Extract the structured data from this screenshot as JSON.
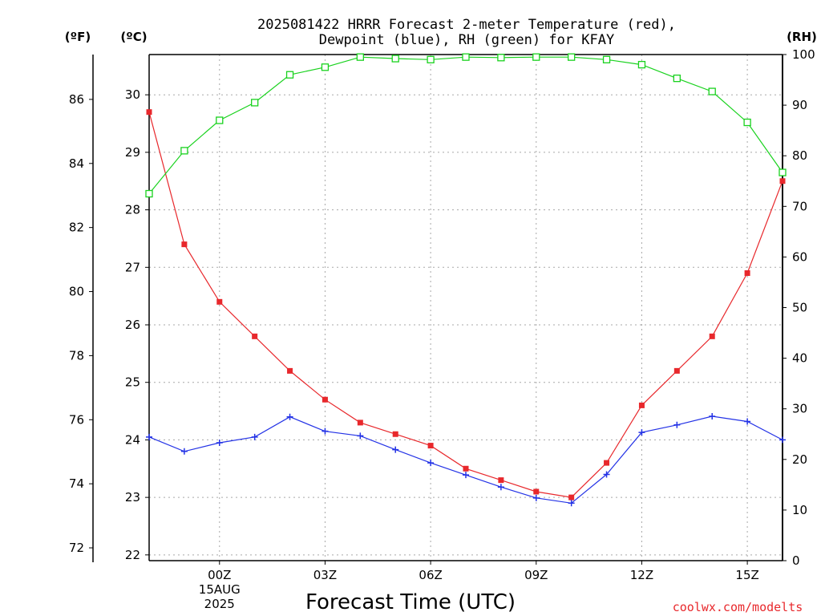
{
  "chart_data": {
    "type": "line",
    "title_lines": [
      "2025081422 HRRR Forecast 2-meter Temperature (red),",
      "Dewpoint (blue), RH (green) for KFAY"
    ],
    "xlabel": "Forecast Time (UTC)",
    "credit": "coolwx.com/modelts",
    "axes": {
      "left_f": {
        "label": "(ºF)",
        "ticks": [
          "72",
          "74",
          "76",
          "78",
          "80",
          "82",
          "84",
          "86"
        ],
        "range": [
          71.6,
          87.4
        ]
      },
      "left_c": {
        "label": "(ºC)",
        "ticks": [
          "22",
          "23",
          "24",
          "25",
          "26",
          "27",
          "28",
          "29",
          "30"
        ],
        "range": [
          21.9,
          30.7
        ]
      },
      "right_rh": {
        "label": "(RH)",
        "ticks": [
          "0",
          "10",
          "20",
          "30",
          "40",
          "50",
          "60",
          "70",
          "80",
          "90",
          "100"
        ],
        "range": [
          0,
          100
        ]
      }
    },
    "x_ticks": [
      {
        "hour": 2,
        "lines": [
          "00Z",
          "15AUG",
          "2025"
        ]
      },
      {
        "hour": 5,
        "lines": [
          "03Z"
        ]
      },
      {
        "hour": 8,
        "lines": [
          "06Z"
        ]
      },
      {
        "hour": 11,
        "lines": [
          "09Z"
        ]
      },
      {
        "hour": 14,
        "lines": [
          "12Z"
        ]
      },
      {
        "hour": 17,
        "lines": [
          "15Z"
        ]
      }
    ],
    "x_range": [
      0,
      18
    ],
    "grid": true,
    "series": [
      {
        "key": "temperature",
        "color": "#e8282c",
        "marker": "filled-square",
        "axis": "left_c",
        "x": [
          0,
          1,
          2,
          3,
          4,
          5,
          6,
          7,
          8,
          9,
          10,
          11,
          12,
          13,
          14,
          15,
          16,
          17,
          18
        ],
        "values": [
          29.7,
          27.4,
          26.4,
          25.8,
          25.2,
          24.7,
          24.3,
          24.1,
          23.9,
          23.5,
          23.3,
          23.1,
          23.0,
          23.6,
          24.6,
          25.2,
          25.8,
          26.9,
          28.5
        ]
      },
      {
        "key": "dewpoint",
        "color": "#2332e6",
        "marker": "plus",
        "axis": "left_c",
        "x": [
          0,
          1,
          2,
          3,
          4,
          5,
          6,
          7,
          8,
          9,
          10,
          11,
          12,
          13,
          14,
          15,
          16,
          17,
          18
        ],
        "values": [
          24.05,
          23.8,
          23.95,
          24.05,
          24.4,
          24.15,
          24.07,
          23.83,
          23.6,
          23.39,
          23.18,
          22.99,
          22.9,
          23.4,
          24.13,
          24.26,
          24.41,
          24.32,
          24.0
        ]
      },
      {
        "key": "rh",
        "color": "#19d21e",
        "marker": "open-square",
        "axis": "right_rh",
        "x": [
          0,
          1,
          2,
          3,
          4,
          5,
          6,
          7,
          8,
          9,
          10,
          11,
          12,
          13,
          14,
          15,
          16,
          17,
          18
        ],
        "values": [
          72.5,
          81.0,
          87.0,
          90.5,
          96.0,
          97.5,
          99.5,
          99.2,
          99.0,
          99.5,
          99.4,
          99.5,
          99.5,
          99.0,
          98.0,
          95.3,
          92.7,
          86.6,
          76.7
        ]
      }
    ]
  }
}
